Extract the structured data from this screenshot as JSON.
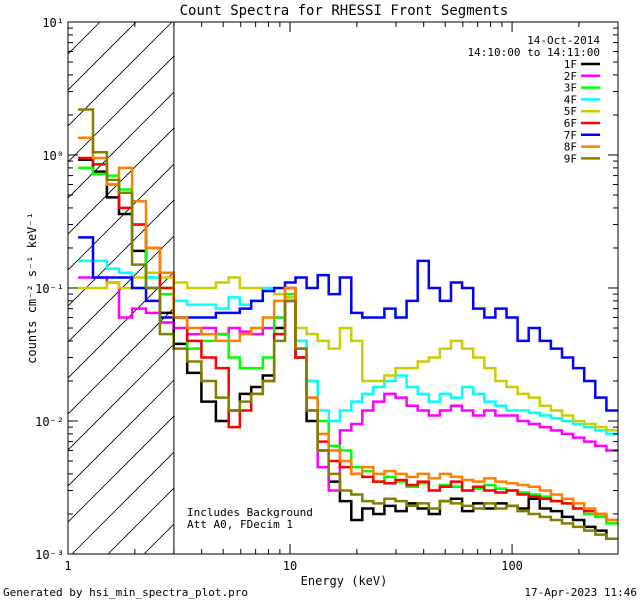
{
  "chart_data": {
    "type": "line",
    "title": "Count Spectra for RHESSI Front Segments",
    "xlabel": "Energy (keV)",
    "ylabel": "counts cm⁻² s⁻¹ keV⁻¹",
    "xscale": "log",
    "yscale": "log",
    "xlim": [
      1.0,
      300.0
    ],
    "ylim": [
      0.001,
      10.0
    ],
    "x_ticks": [
      {
        "value": 1,
        "label": "1"
      },
      {
        "value": 10,
        "label": "10"
      },
      {
        "value": 100,
        "label": "100"
      }
    ],
    "y_ticks": [
      {
        "value": 0.001,
        "label": "10⁻³"
      },
      {
        "value": 0.01,
        "label": "10⁻²"
      },
      {
        "value": 0.1,
        "label": "10⁻¹"
      },
      {
        "value": 1,
        "label": "10⁰"
      },
      {
        "value": 10,
        "label": "10¹"
      }
    ],
    "hatched_region": {
      "x_min": 1.0,
      "x_max": 3.0
    },
    "legend_position": "top-right",
    "date": "14-Oct-2014",
    "time_range": "14:10:00 to 14:11:00",
    "annotation_lines": [
      "Includes Background",
      "Att A0, FDecim 1"
    ],
    "series": [
      {
        "name": "1F",
        "color": "#000000",
        "x": [
          1.2,
          1.4,
          1.6,
          1.8,
          2.1,
          2.4,
          2.8,
          3.2,
          3.7,
          4.3,
          5.0,
          5.6,
          6.3,
          7.1,
          8.0,
          9.0,
          10.0,
          11.2,
          12.6,
          14.1,
          15.8,
          17.8,
          20.0,
          22.4,
          25.1,
          28.2,
          31.6,
          35.5,
          39.8,
          44.7,
          50.1,
          56.2,
          63.1,
          70.8,
          79.4,
          89.1,
          100.0,
          112.2,
          125.9,
          141.3,
          158.5,
          177.8,
          199.5,
          223.9,
          251.2,
          281.8
        ],
        "values": [
          0.92,
          0.75,
          0.48,
          0.36,
          0.19,
          0.1,
          0.065,
          0.038,
          0.023,
          0.014,
          0.01,
          0.012,
          0.016,
          0.018,
          0.022,
          0.05,
          0.08,
          0.03,
          0.01,
          0.006,
          0.0035,
          0.0025,
          0.0018,
          0.0022,
          0.002,
          0.0023,
          0.0021,
          0.0024,
          0.0022,
          0.002,
          0.0025,
          0.0026,
          0.0021,
          0.0024,
          0.0022,
          0.0024,
          0.0023,
          0.0022,
          0.0026,
          0.0022,
          0.0021,
          0.0019,
          0.0018,
          0.0016,
          0.0015,
          0.0013
        ]
      },
      {
        "name": "2F",
        "color": "#ff00ff",
        "x": [
          1.2,
          1.4,
          1.6,
          1.8,
          2.1,
          2.4,
          2.8,
          3.2,
          3.7,
          4.3,
          5.0,
          5.6,
          6.3,
          7.1,
          8.0,
          9.0,
          10.0,
          11.2,
          12.6,
          14.1,
          15.8,
          17.8,
          20.0,
          22.4,
          25.1,
          28.2,
          31.6,
          35.5,
          39.8,
          44.7,
          50.1,
          56.2,
          63.1,
          70.8,
          79.4,
          89.1,
          100.0,
          112.2,
          125.9,
          141.3,
          158.5,
          177.8,
          199.5,
          223.9,
          251.2,
          281.8
        ],
        "values": [
          0.12,
          0.12,
          0.11,
          0.06,
          0.07,
          0.065,
          0.055,
          0.05,
          0.045,
          0.05,
          0.045,
          0.05,
          0.047,
          0.045,
          0.05,
          0.06,
          0.08,
          0.035,
          0.015,
          0.0045,
          0.003,
          0.0085,
          0.0095,
          0.012,
          0.014,
          0.016,
          0.015,
          0.013,
          0.012,
          0.011,
          0.012,
          0.013,
          0.012,
          0.011,
          0.012,
          0.011,
          0.011,
          0.01,
          0.0095,
          0.009,
          0.0085,
          0.008,
          0.0075,
          0.007,
          0.0065,
          0.006
        ]
      },
      {
        "name": "3F",
        "color": "#00ff00",
        "x": [
          1.2,
          1.4,
          1.6,
          1.8,
          2.1,
          2.4,
          2.8,
          3.2,
          3.7,
          4.3,
          5.0,
          5.6,
          6.3,
          7.1,
          8.0,
          9.0,
          10.0,
          11.2,
          12.6,
          14.1,
          15.8,
          17.8,
          20.0,
          22.4,
          25.1,
          28.2,
          31.6,
          35.5,
          39.8,
          44.7,
          50.1,
          56.2,
          63.1,
          70.8,
          79.4,
          89.1,
          100.0,
          112.2,
          125.9,
          141.3,
          158.5,
          177.8,
          199.5,
          223.9,
          251.2,
          281.8
        ],
        "values": [
          0.8,
          0.72,
          0.7,
          0.55,
          0.3,
          0.12,
          0.09,
          0.06,
          0.035,
          0.04,
          0.045,
          0.03,
          0.025,
          0.025,
          0.03,
          0.06,
          0.09,
          0.04,
          0.02,
          0.01,
          0.0065,
          0.006,
          0.0045,
          0.0042,
          0.0035,
          0.0038,
          0.0035,
          0.0032,
          0.0034,
          0.003,
          0.0033,
          0.0032,
          0.003,
          0.0031,
          0.0033,
          0.0031,
          0.003,
          0.0029,
          0.0028,
          0.0027,
          0.0025,
          0.0024,
          0.0022,
          0.002,
          0.0019,
          0.0017
        ]
      },
      {
        "name": "4F",
        "color": "#00ffff",
        "x": [
          1.2,
          1.4,
          1.6,
          1.8,
          2.1,
          2.4,
          2.8,
          3.2,
          3.7,
          4.3,
          5.0,
          5.6,
          6.3,
          7.1,
          8.0,
          9.0,
          10.0,
          11.2,
          12.6,
          14.1,
          15.8,
          17.8,
          20.0,
          22.4,
          25.1,
          28.2,
          31.6,
          35.5,
          39.8,
          44.7,
          50.1,
          56.2,
          63.1,
          70.8,
          79.4,
          89.1,
          100.0,
          112.2,
          125.9,
          141.3,
          158.5,
          177.8,
          199.5,
          223.9,
          251.2,
          281.8
        ],
        "values": [
          0.16,
          0.16,
          0.14,
          0.13,
          0.1,
          0.12,
          0.1,
          0.08,
          0.075,
          0.075,
          0.07,
          0.085,
          0.075,
          0.08,
          0.1,
          0.09,
          0.085,
          0.04,
          0.02,
          0.012,
          0.01,
          0.012,
          0.014,
          0.016,
          0.018,
          0.02,
          0.022,
          0.018,
          0.016,
          0.014,
          0.016,
          0.015,
          0.018,
          0.016,
          0.014,
          0.013,
          0.012,
          0.012,
          0.0115,
          0.011,
          0.0105,
          0.01,
          0.0095,
          0.009,
          0.0085,
          0.008
        ]
      },
      {
        "name": "5F",
        "color": "#cccc00",
        "x": [
          1.2,
          1.4,
          1.6,
          1.8,
          2.1,
          2.4,
          2.8,
          3.2,
          3.7,
          4.3,
          5.0,
          5.6,
          6.3,
          7.1,
          8.0,
          9.0,
          10.0,
          11.2,
          12.6,
          14.1,
          15.8,
          17.8,
          20.0,
          22.4,
          25.1,
          28.2,
          31.6,
          35.5,
          39.8,
          44.7,
          50.1,
          56.2,
          63.1,
          70.8,
          79.4,
          89.1,
          100.0,
          112.2,
          125.9,
          141.3,
          158.5,
          177.8,
          199.5,
          223.9,
          251.2,
          281.8
        ],
        "values": [
          0.1,
          0.1,
          0.11,
          0.1,
          0.12,
          0.13,
          0.12,
          0.11,
          0.1,
          0.1,
          0.11,
          0.12,
          0.1,
          0.1,
          0.095,
          0.09,
          0.085,
          0.05,
          0.045,
          0.04,
          0.035,
          0.05,
          0.04,
          0.02,
          0.02,
          0.022,
          0.025,
          0.025,
          0.028,
          0.03,
          0.035,
          0.04,
          0.035,
          0.03,
          0.025,
          0.02,
          0.018,
          0.016,
          0.015,
          0.013,
          0.012,
          0.011,
          0.01,
          0.0095,
          0.009,
          0.0085
        ]
      },
      {
        "name": "6F",
        "color": "#ff0000",
        "x": [
          1.2,
          1.4,
          1.6,
          1.8,
          2.1,
          2.4,
          2.8,
          3.2,
          3.7,
          4.3,
          5.0,
          5.6,
          6.3,
          7.1,
          8.0,
          9.0,
          10.0,
          11.2,
          12.6,
          14.1,
          15.8,
          17.8,
          20.0,
          22.4,
          25.1,
          28.2,
          31.6,
          35.5,
          39.8,
          44.7,
          50.1,
          56.2,
          63.1,
          70.8,
          79.4,
          89.1,
          100.0,
          112.2,
          125.9,
          141.3,
          158.5,
          177.8,
          199.5,
          223.9,
          251.2,
          281.8
        ],
        "values": [
          0.95,
          0.85,
          0.6,
          0.4,
          0.3,
          0.2,
          0.1,
          0.06,
          0.04,
          0.03,
          0.025,
          0.009,
          0.012,
          0.016,
          0.02,
          0.045,
          0.1,
          0.03,
          0.012,
          0.007,
          0.005,
          0.0045,
          0.004,
          0.0038,
          0.0035,
          0.0034,
          0.0036,
          0.0033,
          0.0035,
          0.003,
          0.0032,
          0.0035,
          0.003,
          0.0032,
          0.003,
          0.0029,
          0.003,
          0.0028,
          0.0027,
          0.0026,
          0.0025,
          0.0024,
          0.0022,
          0.0021,
          0.002,
          0.0018
        ]
      },
      {
        "name": "7F",
        "color": "#0000ff",
        "x": [
          1.2,
          1.4,
          1.6,
          1.8,
          2.1,
          2.4,
          2.8,
          3.2,
          3.7,
          4.3,
          5.0,
          5.6,
          6.3,
          7.1,
          8.0,
          9.0,
          10.0,
          11.2,
          12.6,
          14.1,
          15.8,
          17.8,
          20.0,
          22.4,
          25.1,
          28.2,
          31.6,
          35.5,
          39.8,
          44.7,
          50.1,
          56.2,
          63.1,
          70.8,
          79.4,
          89.1,
          100.0,
          112.2,
          125.9,
          141.3,
          158.5,
          177.8,
          199.5,
          223.9,
          251.2,
          281.8
        ],
        "values": [
          0.24,
          0.12,
          0.12,
          0.12,
          0.1,
          0.08,
          0.06,
          0.06,
          0.06,
          0.06,
          0.065,
          0.065,
          0.07,
          0.08,
          0.095,
          0.1,
          0.11,
          0.12,
          0.1,
          0.125,
          0.09,
          0.12,
          0.065,
          0.06,
          0.06,
          0.07,
          0.06,
          0.08,
          0.16,
          0.1,
          0.08,
          0.11,
          0.1,
          0.07,
          0.06,
          0.07,
          0.06,
          0.04,
          0.05,
          0.04,
          0.035,
          0.03,
          0.025,
          0.02,
          0.015,
          0.012
        ]
      },
      {
        "name": "8F",
        "color": "#ff8000",
        "x": [
          1.2,
          1.4,
          1.6,
          1.8,
          2.1,
          2.4,
          2.8,
          3.2,
          3.7,
          4.3,
          5.0,
          5.6,
          6.3,
          7.1,
          8.0,
          9.0,
          10.0,
          11.2,
          12.6,
          14.1,
          15.8,
          17.8,
          20.0,
          22.4,
          25.1,
          28.2,
          31.6,
          35.5,
          39.8,
          44.7,
          50.1,
          56.2,
          63.1,
          70.8,
          79.4,
          89.1,
          100.0,
          112.2,
          125.9,
          141.3,
          158.5,
          177.8,
          199.5,
          223.9,
          251.2,
          281.8
        ],
        "values": [
          1.35,
          0.95,
          0.6,
          0.8,
          0.45,
          0.2,
          0.13,
          0.06,
          0.05,
          0.045,
          0.04,
          0.04,
          0.045,
          0.05,
          0.06,
          0.08,
          0.1,
          0.035,
          0.015,
          0.008,
          0.006,
          0.005,
          0.004,
          0.0045,
          0.004,
          0.0042,
          0.004,
          0.0038,
          0.004,
          0.0037,
          0.004,
          0.0038,
          0.0036,
          0.0035,
          0.0037,
          0.0035,
          0.0034,
          0.0033,
          0.0032,
          0.003,
          0.0028,
          0.0026,
          0.0024,
          0.0022,
          0.002,
          0.0018
        ]
      },
      {
        "name": "9F",
        "color": "#808000",
        "x": [
          1.2,
          1.4,
          1.6,
          1.8,
          2.1,
          2.4,
          2.8,
          3.2,
          3.7,
          4.3,
          5.0,
          5.6,
          6.3,
          7.1,
          8.0,
          9.0,
          10.0,
          11.2,
          12.6,
          14.1,
          15.8,
          17.8,
          20.0,
          22.4,
          25.1,
          28.2,
          31.6,
          35.5,
          39.8,
          44.7,
          50.1,
          56.2,
          63.1,
          70.8,
          79.4,
          89.1,
          100.0,
          112.2,
          125.9,
          141.3,
          158.5,
          177.8,
          199.5,
          223.9,
          251.2,
          281.8
        ],
        "values": [
          2.2,
          1.05,
          0.65,
          0.52,
          0.15,
          0.1,
          0.045,
          0.035,
          0.028,
          0.02,
          0.015,
          0.012,
          0.014,
          0.016,
          0.02,
          0.04,
          0.08,
          0.035,
          0.012,
          0.006,
          0.004,
          0.003,
          0.0028,
          0.0025,
          0.0024,
          0.0026,
          0.0025,
          0.0023,
          0.0024,
          0.0022,
          0.0025,
          0.0024,
          0.0023,
          0.0022,
          0.0024,
          0.0022,
          0.0023,
          0.0021,
          0.002,
          0.0019,
          0.0018,
          0.0017,
          0.0016,
          0.0015,
          0.0014,
          0.0013
        ]
      }
    ]
  },
  "footer": {
    "generated_by": "Generated by hsi_min_spectra_plot.pro",
    "timestamp": "17-Apr-2023 11:46"
  }
}
